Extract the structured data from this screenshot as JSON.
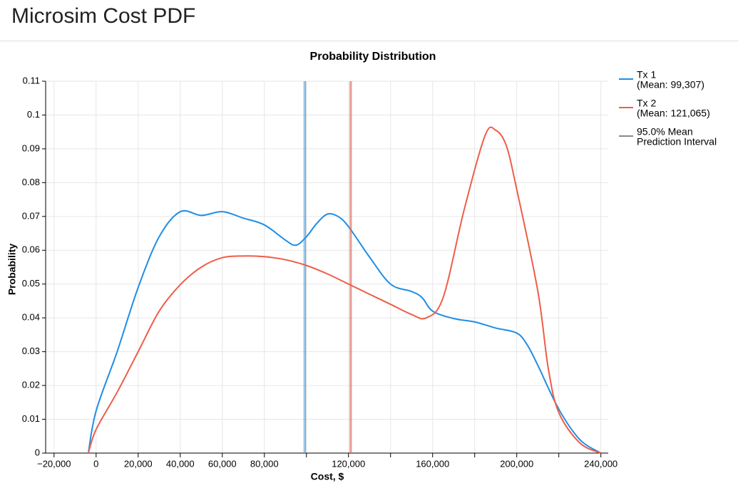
{
  "header": {
    "title": "Microsim Cost PDF"
  },
  "chart_data": {
    "type": "line",
    "title": "Probability Distribution",
    "x_label": "Cost, $",
    "y_label": "Probability",
    "xlim": [
      -24000,
      243500
    ],
    "ylim": [
      0,
      0.11
    ],
    "xticks": [
      {
        "value": -20000,
        "label": "−20,000"
      },
      {
        "value": 0,
        "label": "0"
      },
      {
        "value": 20000,
        "label": "20,000"
      },
      {
        "value": 40000,
        "label": "40,000"
      },
      {
        "value": 60000,
        "label": "60,000"
      },
      {
        "value": 80000,
        "label": "80,000"
      },
      {
        "value": 120000,
        "label": "120,000"
      },
      {
        "value": 160000,
        "label": "160,000"
      },
      {
        "value": 200000,
        "label": "200,000"
      },
      {
        "value": 240000,
        "label": "240,000"
      }
    ],
    "xminor_ticks": [
      100000,
      140000,
      180000,
      220000
    ],
    "yticks": [
      0,
      0.01,
      0.02,
      0.03,
      0.04,
      0.05,
      0.06,
      0.07,
      0.08,
      0.09,
      0.1,
      0.11
    ],
    "grid": true,
    "legend": "right",
    "series": [
      {
        "name": "Tx 1",
        "mean_label": "(Mean: 99,307)",
        "mean": 99307,
        "interval": [
          98700,
          99700
        ],
        "color": "#1f8ee6",
        "x": [
          -3700,
          0,
          10000,
          20000,
          30000,
          40000,
          50000,
          60000,
          70000,
          80000,
          90000,
          95000,
          100000,
          105000,
          110000,
          115000,
          120000,
          130000,
          140000,
          150000,
          155000,
          160000,
          170000,
          180000,
          190000,
          200000,
          205000,
          210000,
          220000,
          230000,
          240000
        ],
        "values": [
          0,
          0.0125,
          0.03,
          0.049,
          0.064,
          0.0714,
          0.0703,
          0.0714,
          0.0695,
          0.0675,
          0.063,
          0.0615,
          0.064,
          0.068,
          0.0707,
          0.07,
          0.067,
          0.058,
          0.05,
          0.0478,
          0.046,
          0.042,
          0.0398,
          0.0388,
          0.037,
          0.0355,
          0.032,
          0.026,
          0.013,
          0.004,
          0
        ]
      },
      {
        "name": "Tx 2",
        "mean_label": "(Mean: 121,065)",
        "mean": 121065,
        "interval": [
          120600,
          121500
        ],
        "color": "#ee5d49",
        "x": [
          -3700,
          0,
          10000,
          20000,
          30000,
          40000,
          50000,
          60000,
          70000,
          80000,
          90000,
          100000,
          110000,
          120000,
          130000,
          140000,
          150000,
          157000,
          165000,
          175000,
          185000,
          190000,
          195000,
          200000,
          210000,
          215000,
          220000,
          230000,
          240000
        ],
        "values": [
          0,
          0.007,
          0.018,
          0.03,
          0.042,
          0.0498,
          0.055,
          0.0578,
          0.0583,
          0.0581,
          0.0572,
          0.0555,
          0.053,
          0.05,
          0.047,
          0.044,
          0.041,
          0.04,
          0.046,
          0.072,
          0.094,
          0.0955,
          0.091,
          0.078,
          0.048,
          0.025,
          0.012,
          0.003,
          0
        ]
      }
    ],
    "interval_label": [
      "95.0% Mean",
      "Prediction Interval"
    ],
    "interval_color": "#888888"
  }
}
